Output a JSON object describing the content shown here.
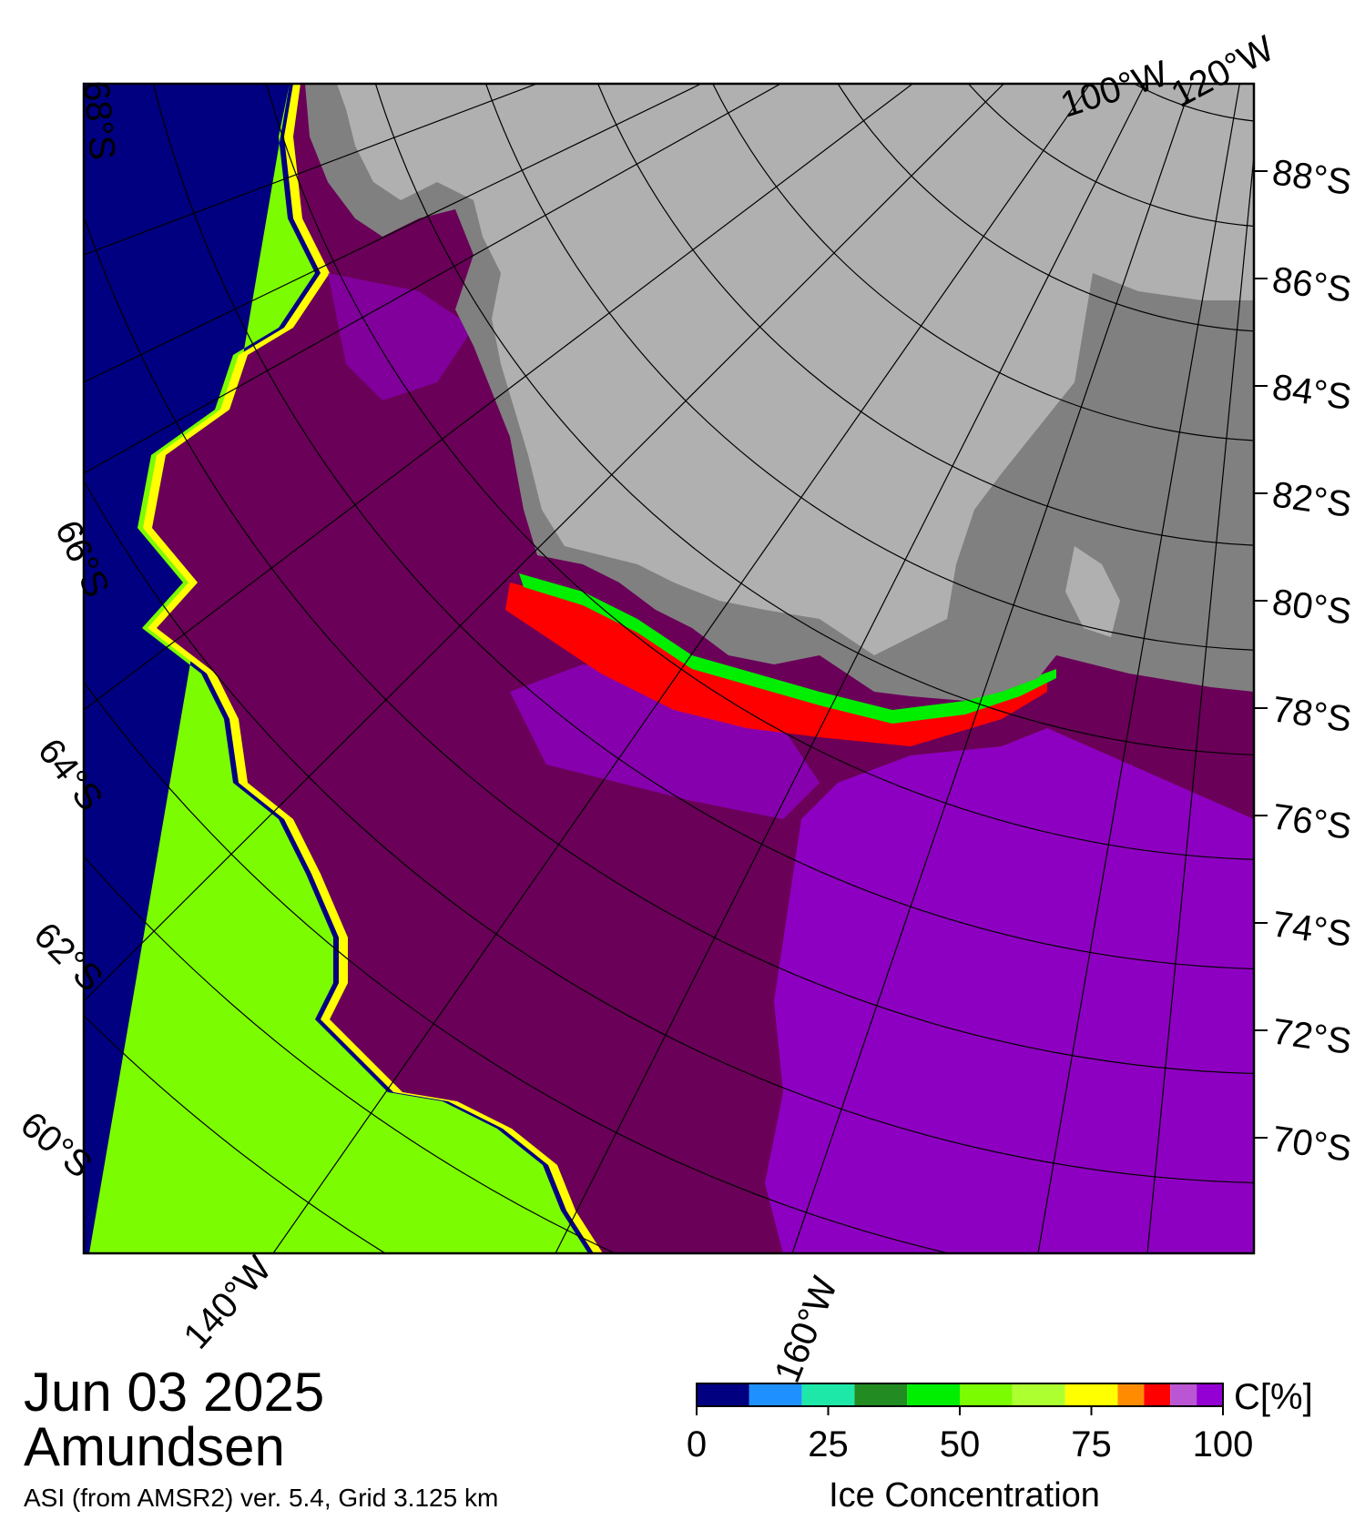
{
  "date": "Jun 03 2025",
  "region": "Amundsen",
  "source_line": "ASI (from AMSR2) ver. 5.4,  Grid 3.125 km",
  "colorbar": {
    "unit_label": "C[%]",
    "title": "Ice Concentration",
    "ticks": [
      "0",
      "25",
      "50",
      "75",
      "100"
    ],
    "tick_values": [
      0,
      25,
      50,
      75,
      100
    ],
    "bins": [
      {
        "from": 0,
        "to": 10,
        "color": "#000080"
      },
      {
        "from": 10,
        "to": 20,
        "color": "#1e90ff"
      },
      {
        "from": 20,
        "to": 30,
        "color": "#1ee8a8"
      },
      {
        "from": 30,
        "to": 40,
        "color": "#228b22"
      },
      {
        "from": 40,
        "to": 50,
        "color": "#00ee00"
      },
      {
        "from": 50,
        "to": 60,
        "color": "#7cfc00"
      },
      {
        "from": 60,
        "to": 70,
        "color": "#adff2f"
      },
      {
        "from": 70,
        "to": 80,
        "color": "#ffff00"
      },
      {
        "from": 80,
        "to": 85,
        "color": "#ff8c00"
      },
      {
        "from": 85,
        "to": 90,
        "color": "#ff0000"
      },
      {
        "from": 90,
        "to": 95,
        "color": "#ba55d3"
      },
      {
        "from": 95,
        "to": 100,
        "color": "#9400d3"
      }
    ]
  },
  "map_colors": {
    "open_water": "#000080",
    "ice_full": "#6a0058",
    "ice_high": "#9400d3",
    "land_ice": "#b0b0b0",
    "ice_shelf": "#808080"
  },
  "latitude_labels": {
    "right": [
      "88°S",
      "86°S",
      "84°S",
      "82°S",
      "80°S",
      "78°S",
      "76°S",
      "74°S",
      "72°S",
      "70°S"
    ],
    "left": [
      "68°S",
      "66°S",
      "64°S",
      "62°S",
      "60°S"
    ]
  },
  "longitude_labels": {
    "bottom": [
      "140°W",
      "160°W"
    ],
    "top": [
      "100°W",
      "120°W"
    ]
  }
}
